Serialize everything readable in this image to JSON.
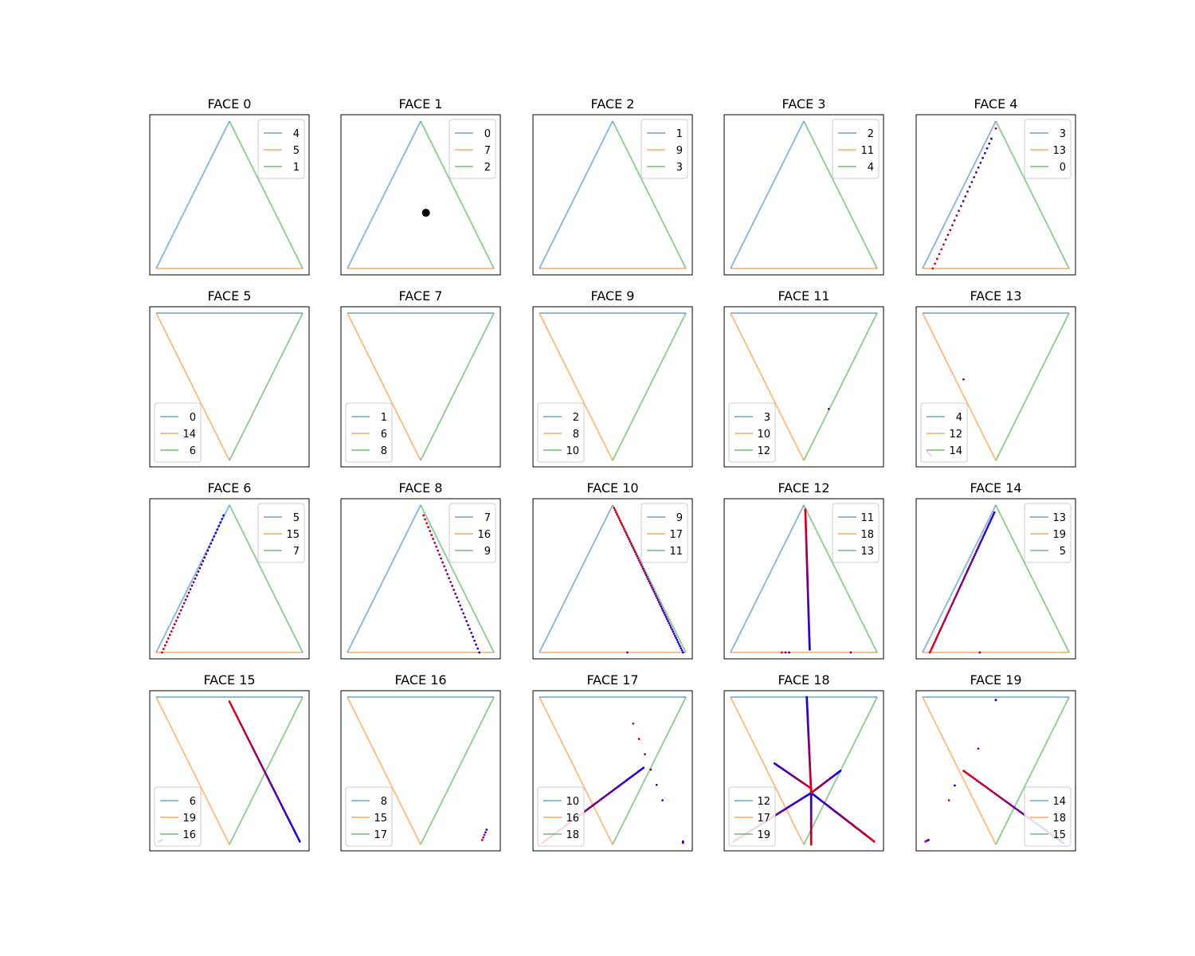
{
  "chart_data": {
    "type": "line",
    "grid": false,
    "axes_ticks": false,
    "colors": {
      "edge0": "#1f77b4",
      "edge1": "#ff7f0e",
      "edge2": "#2ca02c",
      "frame": "#000000"
    },
    "panels": [
      {
        "title": "FACE 0",
        "orientation": "up",
        "legend": [
          "4",
          "5",
          "1"
        ],
        "legend_loc": "upper-right",
        "markers": [],
        "traces": []
      },
      {
        "title": "FACE 1",
        "orientation": "up",
        "legend": [
          "0",
          "7",
          "2"
        ],
        "legend_loc": "upper-right",
        "markers": [
          {
            "u": 0.536,
            "v": 0.378
          }
        ],
        "traces": []
      },
      {
        "title": "FACE 2",
        "orientation": "up",
        "legend": [
          "1",
          "9",
          "3"
        ],
        "legend_loc": "upper-right",
        "markers": [],
        "traces": []
      },
      {
        "title": "FACE 3",
        "orientation": "up",
        "legend": [
          "2",
          "11",
          "4"
        ],
        "legend_loc": "upper-right",
        "markers": [],
        "traces": []
      },
      {
        "title": "FACE 4",
        "orientation": "up",
        "legend": [
          "3",
          "13",
          "0"
        ],
        "legend_loc": "upper-right",
        "markers": [],
        "traces": [
          {
            "from": [
              0.07,
              0.0
            ],
            "to": [
              0.47,
              0.88
            ],
            "n": 28
          },
          {
            "from": [
              0.5,
              0.95
            ],
            "to": [
              0.5,
              0.95
            ],
            "n": 1
          }
        ]
      },
      {
        "title": "FACE 5",
        "orientation": "down",
        "legend": [
          "0",
          "14",
          "6"
        ],
        "legend_loc": "lower-left",
        "markers": [],
        "traces": []
      },
      {
        "title": "FACE 7",
        "orientation": "down",
        "legend": [
          "1",
          "6",
          "8"
        ],
        "legend_loc": "lower-left",
        "markers": [],
        "traces": []
      },
      {
        "title": "FACE 9",
        "orientation": "down",
        "legend": [
          "2",
          "8",
          "10"
        ],
        "legend_loc": "lower-left",
        "markers": [],
        "traces": []
      },
      {
        "title": "FACE 11",
        "orientation": "down",
        "legend": [
          "3",
          "10",
          "12"
        ],
        "legend_loc": "lower-left",
        "markers": [],
        "traces": [
          {
            "from": [
              0.67,
              0.35
            ],
            "to": [
              0.67,
              0.35
            ],
            "n": 1
          }
        ]
      },
      {
        "title": "FACE 13",
        "orientation": "down",
        "legend": [
          "4",
          "12",
          "14"
        ],
        "legend_loc": "lower-left",
        "markers": [],
        "traces": [
          {
            "from": [
              0.06,
              0.03
            ],
            "to": [
              0.03,
              0.06
            ],
            "n": 4
          },
          {
            "from": [
              0.28,
              0.55
            ],
            "to": [
              0.28,
              0.55
            ],
            "n": 1
          }
        ]
      },
      {
        "title": "FACE 6",
        "orientation": "up",
        "legend": [
          "5",
          "15",
          "7"
        ],
        "legend_loc": "upper-right",
        "markers": [],
        "traces": [
          {
            "from": [
              0.04,
              0.0
            ],
            "to": [
              0.46,
              0.93
            ],
            "n": 40
          }
        ]
      },
      {
        "title": "FACE 8",
        "orientation": "up",
        "legend": [
          "7",
          "16",
          "9"
        ],
        "legend_loc": "upper-right",
        "markers": [],
        "traces": [
          {
            "from": [
              0.52,
              0.93
            ],
            "to": [
              0.9,
              0.0
            ],
            "n": 36
          }
        ]
      },
      {
        "title": "FACE 10",
        "orientation": "up",
        "legend": [
          "9",
          "17",
          "11"
        ],
        "legend_loc": "upper-right",
        "markers": [],
        "traces": [
          {
            "from": [
              0.51,
              0.98
            ],
            "to": [
              0.98,
              0.0
            ],
            "n": 70
          },
          {
            "from": [
              0.6,
              0.0
            ],
            "to": [
              0.6,
              0.0
            ],
            "n": 1
          }
        ]
      },
      {
        "title": "FACE 12",
        "orientation": "up",
        "legend": [
          "11",
          "18",
          "13"
        ],
        "legend_loc": "upper-right",
        "markers": [],
        "traces": [
          {
            "from": [
              0.51,
              0.97
            ],
            "to": [
              0.54,
              0.02
            ],
            "n": 120
          },
          {
            "from": [
              0.35,
              0.0
            ],
            "to": [
              0.4,
              0.0
            ],
            "n": 3
          },
          {
            "from": [
              0.82,
              0.0
            ],
            "to": [
              0.82,
              0.0
            ],
            "n": 1
          }
        ]
      },
      {
        "title": "FACE 14",
        "orientation": "up",
        "legend": [
          "13",
          "19",
          "5"
        ],
        "legend_loc": "upper-right",
        "markers": [],
        "traces": [
          {
            "from": [
              0.05,
              0.0
            ],
            "to": [
              0.49,
              0.95
            ],
            "n": 80
          },
          {
            "from": [
              0.39,
              0.0
            ],
            "to": [
              0.39,
              0.0
            ],
            "n": 1
          }
        ]
      },
      {
        "title": "FACE 15",
        "orientation": "down",
        "legend": [
          "6",
          "19",
          "16"
        ],
        "legend_loc": "lower-left",
        "markers": [],
        "traces": [
          {
            "from": [
              0.5,
              0.97
            ],
            "to": [
              0.98,
              0.02
            ],
            "n": 90
          },
          {
            "from": [
              0.02,
              0.02
            ],
            "to": [
              0.04,
              0.03
            ],
            "n": 3
          }
        ]
      },
      {
        "title": "FACE 16",
        "orientation": "down",
        "legend": [
          "8",
          "15",
          "17"
        ],
        "legend_loc": "lower-left",
        "markers": [],
        "traces": [
          {
            "from": [
              0.92,
              0.03
            ],
            "to": [
              0.95,
              0.1
            ],
            "n": 5
          }
        ]
      },
      {
        "title": "FACE 17",
        "orientation": "down",
        "legend": [
          "10",
          "16",
          "18"
        ],
        "legend_loc": "lower-left",
        "markers": [],
        "traces": [
          {
            "from": [
              0.02,
              0.01
            ],
            "to": [
              0.71,
              0.52
            ],
            "n": 80
          },
          {
            "from": [
              0.64,
              0.82
            ],
            "to": [
              0.84,
              0.3
            ],
            "n": 6
          },
          {
            "from": [
              0.98,
              0.01
            ],
            "to": [
              0.98,
              0.02
            ],
            "n": 3
          }
        ]
      },
      {
        "title": "FACE 18",
        "orientation": "down",
        "legend": [
          "12",
          "17",
          "19"
        ],
        "legend_loc": "lower-left",
        "markers": [],
        "traces": [
          {
            "from": [
              0.55,
              0.0
            ],
            "to": [
              0.55,
              0.35
            ],
            "n": 60
          },
          {
            "from": [
              0.55,
              0.35
            ],
            "to": [
              0.52,
              1.0
            ],
            "n": 90
          },
          {
            "from": [
              0.02,
              0.02
            ],
            "to": [
              0.55,
              0.35
            ],
            "n": 70
          },
          {
            "from": [
              0.98,
              0.02
            ],
            "to": [
              0.55,
              0.35
            ],
            "n": 70
          },
          {
            "from": [
              0.55,
              0.35
            ],
            "to": [
              0.75,
              0.5
            ],
            "n": 30
          },
          {
            "from": [
              0.55,
              0.38
            ],
            "to": [
              0.3,
              0.55
            ],
            "n": 35
          }
        ]
      },
      {
        "title": "FACE 19",
        "orientation": "down",
        "legend": [
          "14",
          "18",
          "15"
        ],
        "legend_loc": "lower-right",
        "markers": [],
        "traces": [
          {
            "from": [
              0.28,
              0.5
            ],
            "to": [
              0.96,
              0.01
            ],
            "n": 70
          },
          {
            "from": [
              0.02,
              0.02
            ],
            "to": [
              0.04,
              0.03
            ],
            "n": 3
          },
          {
            "from": [
              0.18,
              0.3
            ],
            "to": [
              0.22,
              0.4
            ],
            "n": 2
          },
          {
            "from": [
              0.38,
              0.65
            ],
            "to": [
              0.38,
              0.65
            ],
            "n": 1
          },
          {
            "from": [
              0.5,
              0.98
            ],
            "to": [
              0.5,
              0.98
            ],
            "n": 2
          }
        ]
      }
    ]
  }
}
